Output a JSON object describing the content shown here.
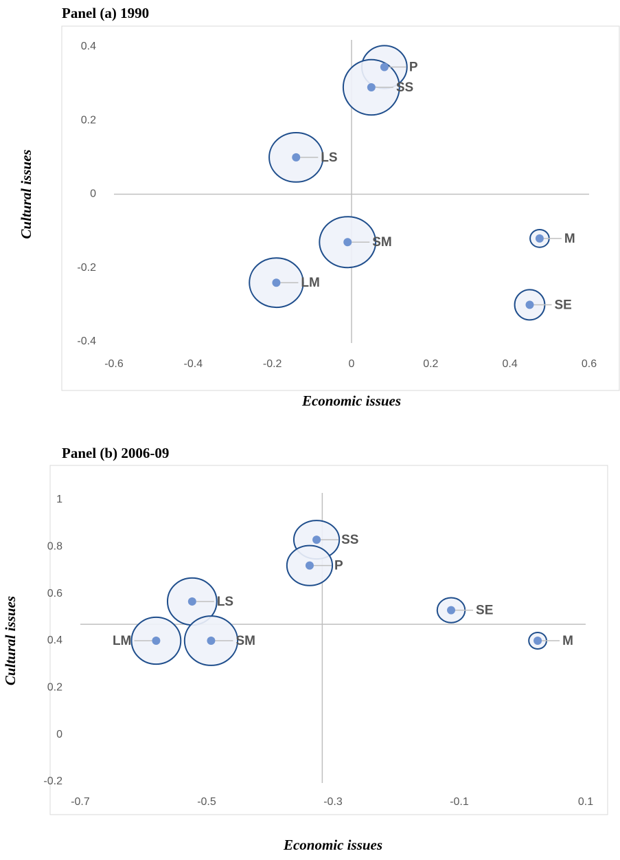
{
  "chart_data": [
    {
      "type": "scatter",
      "title": "Panel (a) 1990",
      "x_label": "Economic issues",
      "y_label": "Cultural issues",
      "labels": [
        "P",
        "SS",
        "LS",
        "SM",
        "LM",
        "M",
        "SE"
      ],
      "x": [
        0.083,
        0.05,
        -0.14,
        -0.01,
        -0.19,
        0.475,
        0.45
      ],
      "values": [
        0.345,
        0.29,
        0.1,
        -0.13,
        -0.24,
        -0.12,
        -0.3
      ],
      "x_radius": [
        0.057,
        0.071,
        0.068,
        0.071,
        0.068,
        0.024,
        0.038
      ],
      "y_radius": [
        0.058,
        0.075,
        0.067,
        0.069,
        0.067,
        0.024,
        0.041
      ],
      "label_side": [
        "right",
        "right",
        "right",
        "right",
        "right",
        "right",
        "right"
      ],
      "color": "#6f93d1",
      "ellipse_color": "#1f4e8c",
      "xlim": [
        -0.6,
        0.6
      ],
      "xticks": [
        -0.6,
        -0.4,
        -0.2,
        0,
        0.2,
        0.4,
        0.6
      ],
      "ylim": [
        -0.4,
        0.4
      ],
      "yticks": [
        -0.4,
        -0.2,
        0,
        0.2,
        0.4
      ],
      "axis_cross": [
        0,
        0
      ]
    },
    {
      "type": "scatter",
      "title": "Panel (b) 2006-09",
      "x_label": "Economic issues",
      "y_label": "Cultural issues",
      "labels": [
        "SS",
        "P",
        "LS",
        "SE",
        "LM",
        "SM",
        "M"
      ],
      "x": [
        -0.326,
        -0.337,
        -0.523,
        -0.113,
        -0.58,
        -0.493,
        0.024
      ],
      "values": [
        0.83,
        0.72,
        0.567,
        0.53,
        0.4,
        0.4,
        0.4
      ],
      "x_radius": [
        0.036,
        0.036,
        0.039,
        0.022,
        0.039,
        0.042,
        0.014
      ],
      "y_radius": [
        0.082,
        0.085,
        0.1,
        0.053,
        0.1,
        0.105,
        0.035
      ],
      "label_side": [
        "right",
        "right",
        "right",
        "right",
        "left",
        "right",
        "right"
      ],
      "color": "#6f93d1",
      "ellipse_color": "#1f4e8c",
      "xlim": [
        -0.7,
        0.1
      ],
      "xticks": [
        -0.7,
        -0.5,
        -0.3,
        -0.1,
        0.1
      ],
      "ylim": [
        -0.2,
        1
      ],
      "yticks": [
        -0.2,
        0,
        0.2,
        0.4,
        0.6,
        0.8,
        1
      ],
      "axis_cross": [
        -0.317,
        0.47
      ]
    }
  ]
}
